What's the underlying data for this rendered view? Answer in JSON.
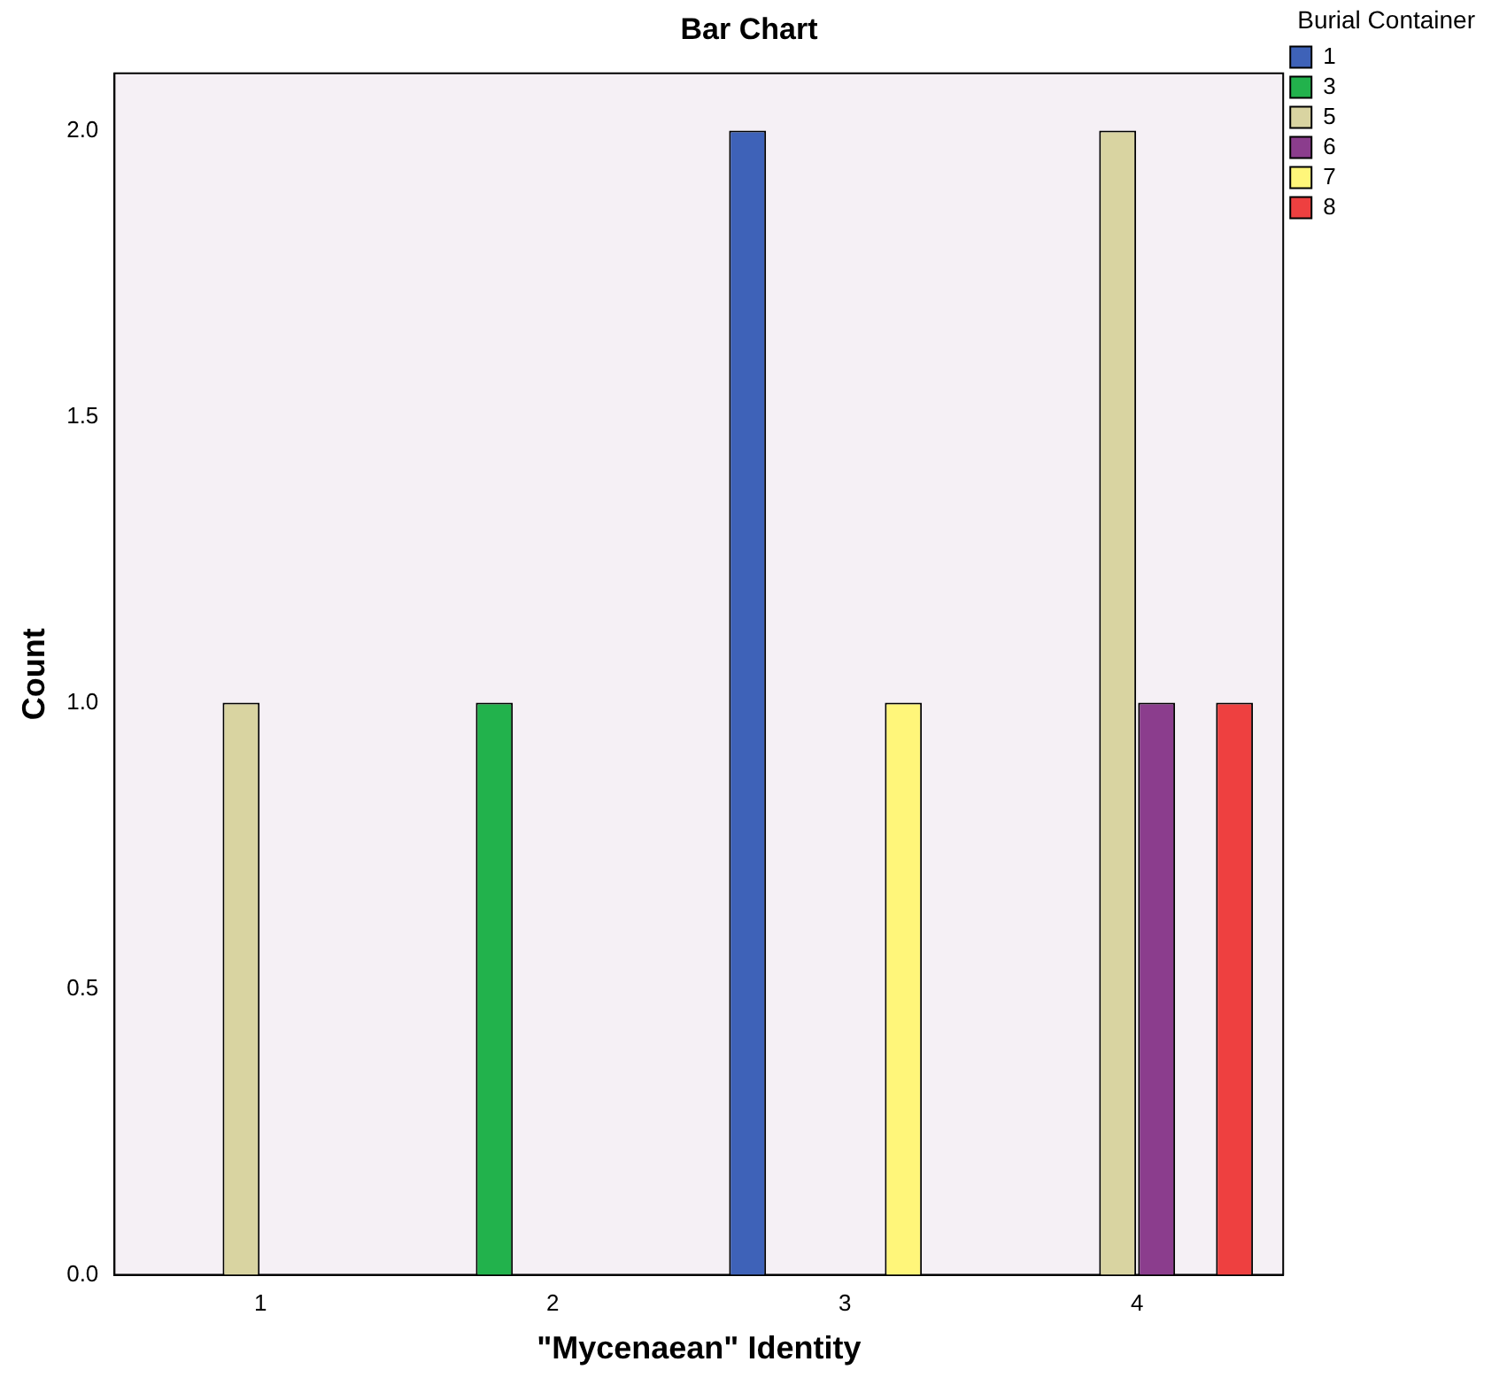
{
  "chart_data": {
    "type": "bar",
    "title": "Bar Chart",
    "xlabel": "\"Mycenaean\" Identity",
    "ylabel": "Count",
    "legend_title": "Burial Container",
    "categories": [
      "1",
      "2",
      "3",
      "4"
    ],
    "series": [
      {
        "name": "1",
        "color": "#3e62b8",
        "values": [
          null,
          null,
          2,
          null
        ]
      },
      {
        "name": "3",
        "color": "#22b24c",
        "values": [
          null,
          1,
          null,
          null
        ]
      },
      {
        "name": "5",
        "color": "#d9d4a1",
        "values": [
          1,
          null,
          null,
          2
        ]
      },
      {
        "name": "6",
        "color": "#8b3d8d",
        "values": [
          null,
          null,
          null,
          1
        ]
      },
      {
        "name": "7",
        "color": "#fff67a",
        "values": [
          null,
          null,
          1,
          null
        ]
      },
      {
        "name": "8",
        "color": "#ee4040",
        "values": [
          null,
          null,
          null,
          1
        ]
      }
    ],
    "ylim": [
      0,
      2.1
    ],
    "yticks": [
      {
        "value": 0,
        "label": "0.0"
      },
      {
        "value": 0.5,
        "label": "0.5"
      },
      {
        "value": 1,
        "label": "1.0"
      },
      {
        "value": 1.5,
        "label": "1.5"
      },
      {
        "value": 2,
        "label": "2.0"
      }
    ],
    "grid": false,
    "legend": "top right"
  }
}
